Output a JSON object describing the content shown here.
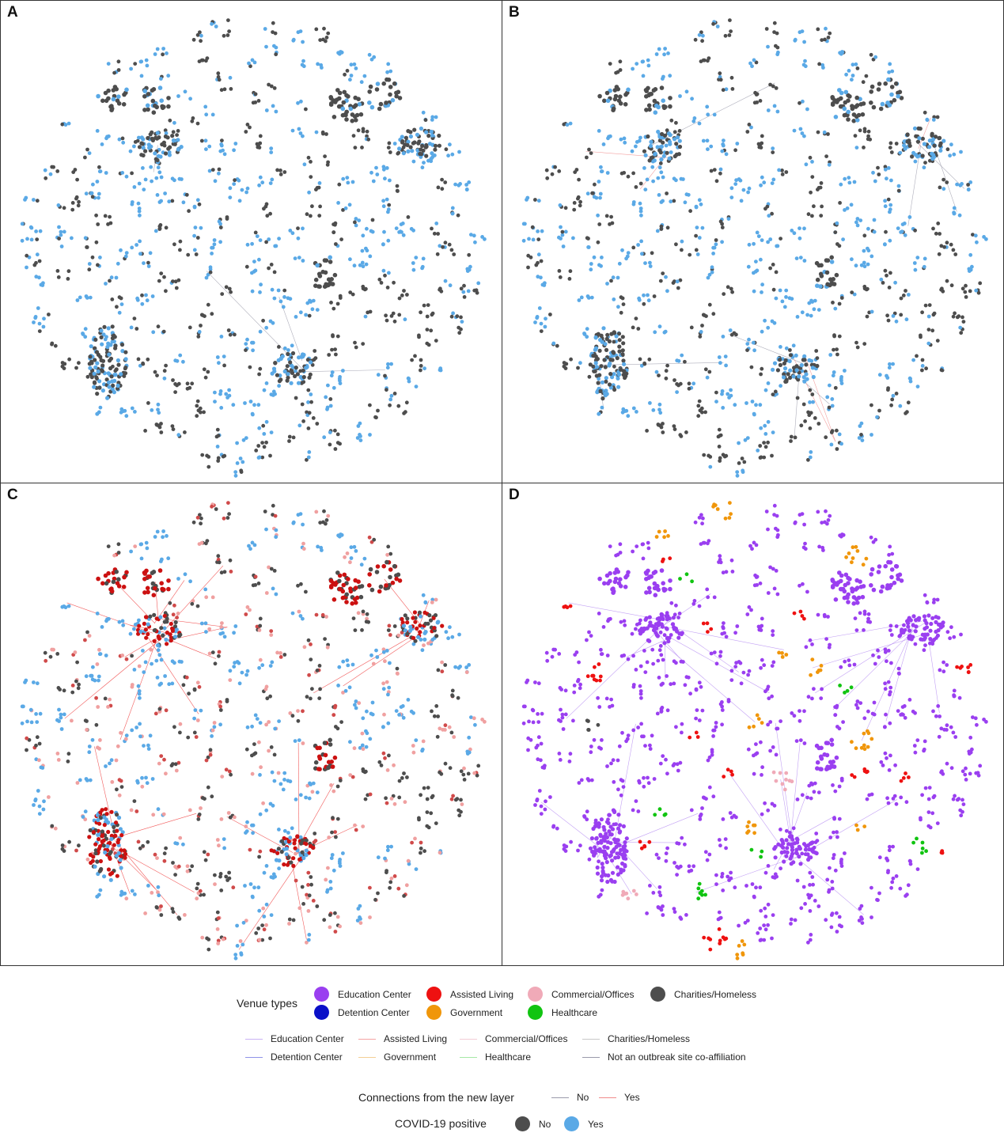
{
  "panels": [
    {
      "label": "A",
      "theme": "A"
    },
    {
      "label": "B",
      "theme": "B"
    },
    {
      "label": "C",
      "theme": "C"
    },
    {
      "label": "D",
      "theme": "D"
    }
  ],
  "colors": {
    "covid_no": "#4d4d4d",
    "covid_yes": "#5aa9e6",
    "education": "#9a3ff0",
    "assisted_living": "#ee1111",
    "commercial": "#f0aab8",
    "charities": "#4d4d4d",
    "detention": "#0a10c8",
    "government": "#f0960a",
    "healthcare": "#11c411",
    "edge_no": "#9a9aaa",
    "edge_yes": "#f08a8a"
  },
  "legend": {
    "venue_types": {
      "title": "Venue types",
      "items": [
        {
          "label": "Education Center",
          "color": "#9a3ff0"
        },
        {
          "label": "Assisted Living",
          "color": "#ee1111"
        },
        {
          "label": "Commercial/Offices",
          "color": "#f0aab8"
        },
        {
          "label": "Charities/Homeless",
          "color": "#4d4d4d"
        },
        {
          "label": "Detention Center",
          "color": "#0a10c8"
        },
        {
          "label": "Government",
          "color": "#f0960a"
        },
        {
          "label": "Healthcare",
          "color": "#11c411"
        }
      ]
    },
    "edge_types": {
      "items": [
        {
          "label": "Education Center",
          "color": "#c9b3f5"
        },
        {
          "label": "Assisted Living",
          "color": "#f5a3a3"
        },
        {
          "label": "Commercial/Offices",
          "color": "#f3cdd5"
        },
        {
          "label": "Charities/Homeless",
          "color": "#c8c8c8"
        },
        {
          "label": "Detention Center",
          "color": "#8f92e8"
        },
        {
          "label": "Government",
          "color": "#f3cf95"
        },
        {
          "label": "Healthcare",
          "color": "#a5e8a5"
        },
        {
          "label": "Not an outbreak site co-affiliation",
          "color": "#9a9aaa"
        }
      ]
    },
    "new_layer": {
      "title": "Connections from the new layer",
      "items": [
        {
          "label": "No",
          "color": "#9a9aaa"
        },
        {
          "label": "Yes",
          "color": "#f08a8a"
        }
      ]
    },
    "covid": {
      "title": "COVID-19 positive",
      "items": [
        {
          "label": "No",
          "color": "#4d4d4d"
        },
        {
          "label": "Yes",
          "color": "#5aa9e6"
        }
      ]
    }
  }
}
